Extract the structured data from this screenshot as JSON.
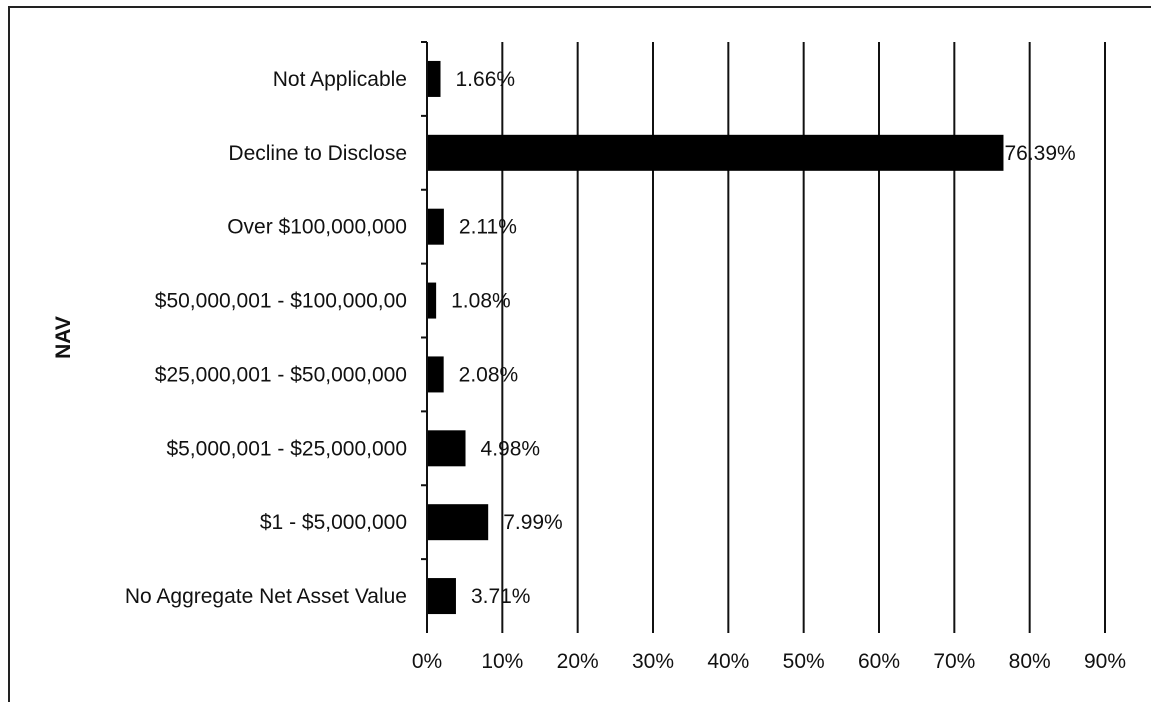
{
  "chart_data": {
    "type": "bar",
    "orientation": "horizontal",
    "ylabel": "NAV",
    "xlabel": "",
    "xlim": [
      0,
      90
    ],
    "x_tick_labels": [
      "0%",
      "10%",
      "20%",
      "30%",
      "40%",
      "50%",
      "60%",
      "70%",
      "80%",
      "90%"
    ],
    "grid": "vertical",
    "bar_color": "#000000",
    "categories": [
      "Not Applicable",
      "Decline to Disclose",
      "Over $100,000,000",
      "$50,000,001 - $100,000,00",
      "$25,000,001 - $50,000,000",
      "$5,000,001 - $25,000,000",
      "$1 - $5,000,000",
      "No Aggregate Net Asset Value"
    ],
    "values": [
      1.66,
      76.39,
      2.11,
      1.08,
      2.08,
      4.98,
      7.99,
      3.71
    ],
    "data_labels": [
      "1.66%",
      "76.39%",
      "2.11%",
      "1.08%",
      "2.08%",
      "4.98%",
      "7.99%",
      "3.71%"
    ]
  }
}
